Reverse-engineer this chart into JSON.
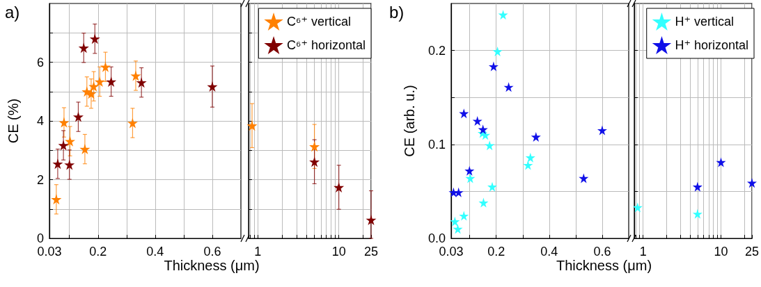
{
  "chart_data": [
    {
      "type": "scatter",
      "title": "a)",
      "xlabel": "Thickness (μm)",
      "ylabel": "CE (%)",
      "xlim": [
        0.03,
        0.7
      ],
      "xticks": [
        0.03,
        {
          "value": 0.1,
          "label": null
        },
        0.2,
        {
          "value": 0.3,
          "label": null
        },
        0.4,
        {
          "value": 0.5,
          "label": null
        },
        0.6
      ],
      "ylim": [
        0,
        8
      ],
      "yticks": [
        0,
        {
          "value": 1,
          "label": null
        },
        2,
        {
          "value": 3,
          "label": null
        },
        4,
        {
          "value": 5,
          "label": null
        },
        6,
        {
          "value": 7,
          "label": null
        }
      ],
      "grid": true,
      "marker": "star",
      "series": [
        {
          "color": "#ff8000",
          "x": [
            0.054,
            0.081,
            0.102,
            0.154,
            0.161,
            0.176,
            0.185,
            0.206,
            0.226,
            0.321,
            0.332
          ],
          "values": [
            1.33,
            3.95,
            3.31,
            3.04,
            5.0,
            4.93,
            5.18,
            5.34,
            5.84,
            3.93,
            5.54
          ],
          "errors": [
            0.5,
            0.5,
            0.5,
            0.5,
            0.5,
            0.5,
            0.5,
            0.5,
            0.5,
            0.5,
            0.5
          ]
        },
        {
          "color": "#800000",
          "x": [
            0.059,
            0.079,
            0.1,
            0.131,
            0.15,
            0.189,
            0.246,
            0.352,
            0.6
          ],
          "values": [
            2.54,
            3.17,
            2.51,
            4.14,
            6.49,
            6.8,
            5.34,
            5.31,
            5.17
          ],
          "errors": [
            0.5,
            0.5,
            0.5,
            0.5,
            0.5,
            0.5,
            0.5,
            0.5,
            0.7
          ]
        }
      ]
    },
    {
      "type": "scatter",
      "log": "x",
      "xlim": [
        0.77,
        25
      ],
      "xticks": [
        {
          "value": 0.8,
          "label": null
        },
        {
          "value": 0.9,
          "label": null
        },
        1,
        {
          "value": 2,
          "label": null
        },
        {
          "value": 3,
          "label": null
        },
        {
          "value": 4,
          "label": null
        },
        {
          "value": 5,
          "label": null
        },
        {
          "value": 6,
          "label": null
        },
        {
          "value": 7,
          "label": null
        },
        {
          "value": 8,
          "label": null
        },
        {
          "value": 9,
          "label": null
        },
        10,
        {
          "value": 20,
          "label": null
        },
        25
      ],
      "ylim": [
        0,
        8
      ],
      "yticks": [
        0,
        {
          "value": 1,
          "label": null
        },
        2,
        {
          "value": 3,
          "label": null
        },
        4,
        {
          "value": 5,
          "label": null
        },
        6,
        {
          "value": 7,
          "label": null
        }
      ],
      "tick_labels": "x",
      "grid": true,
      "legend": "top right",
      "marker": "star",
      "series": [
        {
          "name": "C⁶⁺ vertical",
          "color": "#ff8000",
          "x": [
            0.85,
            5
          ],
          "values": [
            3.84,
            3.13
          ],
          "errors": [
            0.75,
            0.75
          ]
        },
        {
          "name": "C⁶⁺ horizontal",
          "color": "#800000",
          "x": [
            5,
            10,
            25
          ],
          "values": [
            2.61,
            1.74,
            0.63
          ],
          "errors": [
            0.75,
            0.75,
            [
              0,
              1.62
            ]
          ]
        }
      ]
    },
    {
      "type": "scatter",
      "title": "b)",
      "xlabel": "Thickness (μm)",
      "ylabel": "CE (arb. u.)",
      "xlim": [
        0.03,
        0.7
      ],
      "xticks": [
        0.03,
        {
          "value": 0.1,
          "label": null
        },
        0.2,
        {
          "value": 0.3,
          "label": null
        },
        0.4,
        {
          "value": 0.5,
          "label": null
        },
        0.6
      ],
      "ylim": [
        0,
        0.25
      ],
      "yticks": [
        {
          "value": 0,
          "label": "0.0"
        },
        {
          "value": 0.05,
          "label": null
        },
        0.1,
        {
          "value": 0.15,
          "label": null
        },
        0.2
      ],
      "grid": true,
      "marker": "star",
      "series": [
        {
          "color": "#33ffff",
          "x": [
            0.044,
            0.055,
            0.078,
            0.102,
            0.148,
            0.159,
            0.152,
            0.175,
            0.185,
            0.205,
            0.226,
            0.32,
            0.329
          ],
          "values": [
            0.018,
            0.01,
            0.024,
            0.064,
            0.112,
            0.11,
            0.038,
            0.099,
            0.055,
            0.199,
            0.238,
            0.078,
            0.086
          ]
        },
        {
          "color": "#1010e8",
          "x": [
            0.039,
            0.058,
            0.078,
            0.099,
            0.129,
            0.15,
            0.19,
            0.247,
            0.35,
            0.53,
            0.6
          ],
          "values": [
            0.049,
            0.049,
            0.133,
            0.072,
            0.125,
            0.116,
            0.183,
            0.161,
            0.108,
            0.064,
            0.115
          ]
        }
      ]
    },
    {
      "type": "scatter",
      "log": "x",
      "xlim": [
        0.77,
        25
      ],
      "xticks": [
        {
          "value": 0.8,
          "label": null
        },
        {
          "value": 0.9,
          "label": null
        },
        1,
        {
          "value": 2,
          "label": null
        },
        {
          "value": 3,
          "label": null
        },
        {
          "value": 4,
          "label": null
        },
        {
          "value": 5,
          "label": null
        },
        {
          "value": 6,
          "label": null
        },
        {
          "value": 7,
          "label": null
        },
        {
          "value": 8,
          "label": null
        },
        {
          "value": 9,
          "label": null
        },
        10,
        {
          "value": 20,
          "label": null
        },
        25
      ],
      "ylim": [
        0,
        0.25
      ],
      "yticks": [
        0,
        {
          "value": 0.05,
          "label": null
        },
        0.1,
        {
          "value": 0.15,
          "label": null
        },
        0.2
      ],
      "tick_labels": "x",
      "grid": true,
      "legend": "top right",
      "marker": "star",
      "series": [
        {
          "name": "H⁺ vertical",
          "color": "#33ffff",
          "x": [
            0.85,
            5
          ],
          "values": [
            0.033,
            0.026
          ]
        },
        {
          "name": "H⁺ horizontal",
          "color": "#1010e8",
          "x": [
            5,
            10,
            25
          ],
          "values": [
            0.055,
            0.081,
            0.059
          ]
        }
      ]
    }
  ]
}
